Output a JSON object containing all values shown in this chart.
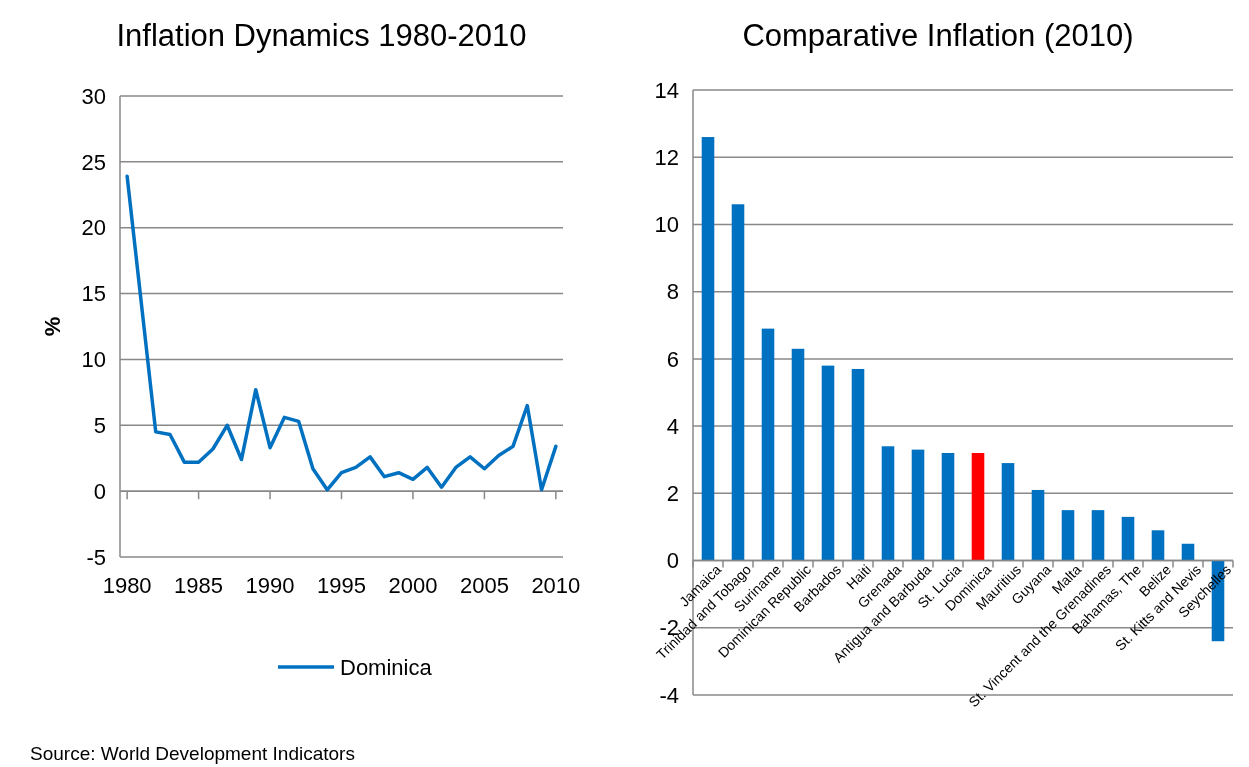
{
  "chart_data": [
    {
      "type": "line",
      "title": "Inflation Dynamics 1980-2010",
      "ylabel": "%",
      "x": [
        1980,
        1981,
        1982,
        1983,
        1984,
        1985,
        1986,
        1987,
        1988,
        1989,
        1990,
        1991,
        1992,
        1993,
        1994,
        1995,
        1996,
        1997,
        1998,
        1999,
        2000,
        2001,
        2002,
        2003,
        2004,
        2005,
        2006,
        2007,
        2008,
        2009,
        2010
      ],
      "series": [
        {
          "name": "Dominica",
          "color": "#0070c0",
          "values": [
            23.9,
            14.2,
            4.5,
            4.3,
            2.2,
            2.2,
            3.2,
            5.0,
            2.4,
            7.7,
            3.3,
            5.6,
            5.3,
            1.7,
            0.1,
            1.4,
            1.8,
            2.6,
            1.1,
            1.4,
            0.9,
            1.8,
            0.3,
            1.8,
            2.6,
            1.7,
            2.7,
            3.4,
            6.5,
            0.1,
            3.4
          ]
        }
      ],
      "xlim": [
        1979.5,
        2010.5
      ],
      "xticks": [
        1980,
        1985,
        1990,
        1995,
        2000,
        2005,
        2010
      ],
      "ylim": [
        -5,
        30
      ],
      "yticks": [
        -5,
        0,
        5,
        10,
        15,
        20,
        25,
        30
      ],
      "grid": "y",
      "legend": "bottom",
      "marker": "none",
      "line_style": "solid",
      "annotations": [
        "Source: World Development Indicators"
      ]
    },
    {
      "type": "bar",
      "title": "Comparative Inflation (2010)",
      "categories": [
        "Jamaica",
        "Trinidad and Tobago",
        "Suriname",
        "Dominican Republic",
        "Barbados",
        "Haiti",
        "Grenada",
        "Antigua and Barbuda",
        "St. Lucia",
        "Dominica",
        "Mauritius",
        "Guyana",
        "Malta",
        "St. Vincent and the Grenadines",
        "Bahamas, The",
        "Belize",
        "St. Kitts and Nevis",
        "Seychelles"
      ],
      "values": [
        12.6,
        10.6,
        6.9,
        6.3,
        5.8,
        5.7,
        3.4,
        3.3,
        3.2,
        3.2,
        2.9,
        2.1,
        1.5,
        1.5,
        1.3,
        0.9,
        0.5,
        -2.4
      ],
      "colors": [
        "#0070c0",
        "#0070c0",
        "#0070c0",
        "#0070c0",
        "#0070c0",
        "#0070c0",
        "#0070c0",
        "#0070c0",
        "#0070c0",
        "#ff0000",
        "#0070c0",
        "#0070c0",
        "#0070c0",
        "#0070c0",
        "#0070c0",
        "#0070c0",
        "#0070c0",
        "#0070c0"
      ],
      "ylim": [
        -4,
        14
      ],
      "yticks": [
        -4,
        -2,
        0,
        2,
        4,
        6,
        8,
        10,
        12,
        14
      ],
      "grid": "y"
    }
  ]
}
